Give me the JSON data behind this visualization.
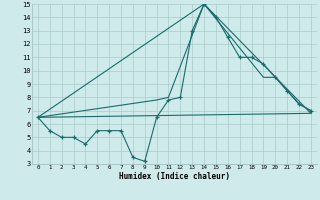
{
  "xlabel": "Humidex (Indice chaleur)",
  "bg_color": "#ceeaea",
  "grid_color": "#aacaca",
  "line_color": "#1a6b6b",
  "xlim": [
    -0.5,
    23.5
  ],
  "ylim": [
    3,
    15
  ],
  "xticks": [
    0,
    1,
    2,
    3,
    4,
    5,
    6,
    7,
    8,
    9,
    10,
    11,
    12,
    13,
    14,
    15,
    16,
    17,
    18,
    19,
    20,
    21,
    22,
    23
  ],
  "yticks": [
    3,
    4,
    5,
    6,
    7,
    8,
    9,
    10,
    11,
    12,
    13,
    14,
    15
  ],
  "line1_x": [
    0,
    1,
    2,
    3,
    4,
    5,
    6,
    7,
    8,
    9,
    10,
    11,
    12,
    13,
    14,
    15,
    16,
    17,
    18,
    19,
    20,
    21,
    22,
    23
  ],
  "line1_y": [
    6.5,
    5.5,
    5.0,
    5.0,
    4.5,
    5.5,
    5.5,
    5.5,
    3.5,
    3.2,
    6.5,
    7.8,
    8.0,
    13.0,
    15.0,
    14.0,
    12.5,
    11.0,
    11.0,
    10.5,
    9.5,
    8.5,
    7.5,
    7.0
  ],
  "line2_x": [
    0,
    10,
    11,
    14,
    19,
    20,
    21,
    22,
    23
  ],
  "line2_y": [
    6.5,
    7.8,
    8.0,
    15.0,
    9.5,
    9.5,
    8.5,
    7.5,
    7.0
  ],
  "line3_x": [
    0,
    14,
    23
  ],
  "line3_y": [
    6.5,
    15.0,
    6.8
  ],
  "line4_x": [
    0,
    23
  ],
  "line4_y": [
    6.5,
    6.8
  ]
}
